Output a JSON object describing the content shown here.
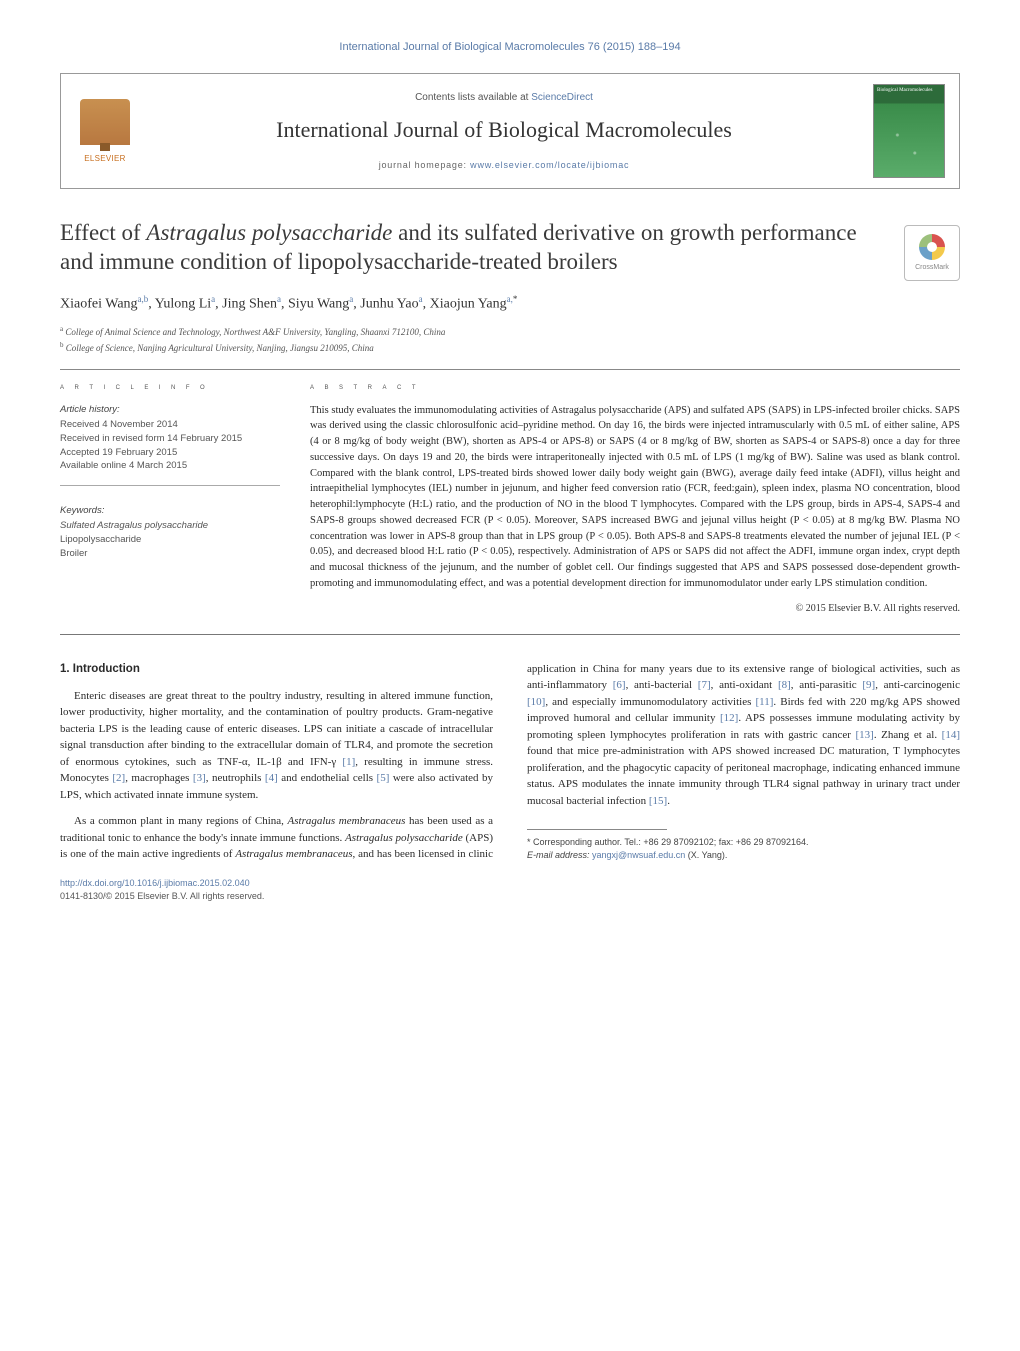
{
  "top_citation": "International Journal of Biological Macromolecules 76 (2015) 188–194",
  "header": {
    "elsevier_label": "ELSEVIER",
    "contents_prefix": "Contents lists available at ",
    "contents_link": "ScienceDirect",
    "journal_title": "International Journal of Biological Macromolecules",
    "homepage_prefix": "journal homepage: ",
    "homepage_url": "www.elsevier.com/locate/ijbiomac",
    "cover_label": "Biological Macromolecules"
  },
  "crossmark_label": "CrossMark",
  "title_parts": {
    "p1": "Effect of ",
    "em1": "Astragalus polysaccharide",
    "p2": " and its sulfated derivative on growth performance and immune condition of lipopolysaccharide-treated broilers"
  },
  "authors_html": "Xiaofei Wang|a,b|, Yulong Li|a|, Jing Shen|a|, Siyu Wang|a|, Junhu Yao|a|, Xiaojun Yang|a,*|",
  "authors": [
    {
      "name": "Xiaofei Wang",
      "sup": "a,b"
    },
    {
      "name": "Yulong Li",
      "sup": "a"
    },
    {
      "name": "Jing Shen",
      "sup": "a"
    },
    {
      "name": "Siyu Wang",
      "sup": "a"
    },
    {
      "name": "Junhu Yao",
      "sup": "a"
    },
    {
      "name": "Xiaojun Yang",
      "sup": "a,",
      "star": "*"
    }
  ],
  "affiliations": [
    {
      "sup": "a",
      "text": "College of Animal Science and Technology, Northwest A&F University, Yangling, Shaanxi 712100, China"
    },
    {
      "sup": "b",
      "text": "College of Science, Nanjing Agricultural University, Nanjing, Jiangsu 210095, China"
    }
  ],
  "info_head": "A R T I C L E   I N F O",
  "abs_head": "A B S T R A C T",
  "history_label": "Article history:",
  "history": [
    "Received 4 November 2014",
    "Received in revised form 14 February 2015",
    "Accepted 19 February 2015",
    "Available online 4 March 2015"
  ],
  "keywords_label": "Keywords:",
  "keywords": [
    "Sulfated Astragalus polysaccharide",
    "Lipopolysaccharide",
    "Broiler"
  ],
  "abstract": "This study evaluates the immunomodulating activities of Astragalus polysaccharide (APS) and sulfated APS (SAPS) in LPS-infected broiler chicks. SAPS was derived using the classic chlorosulfonic acid–pyridine method. On day 16, the birds were injected intramuscularly with 0.5 mL of either saline, APS (4 or 8 mg/kg of body weight (BW), shorten as APS-4 or APS-8) or SAPS (4 or 8 mg/kg of BW, shorten as SAPS-4 or SAPS-8) once a day for three successive days. On days 19 and 20, the birds were intraperitoneally injected with 0.5 mL of LPS (1 mg/kg of BW). Saline was used as blank control. Compared with the blank control, LPS-treated birds showed lower daily body weight gain (BWG), average daily feed intake (ADFI), villus height and intraepithelial lymphocytes (IEL) number in jejunum, and higher feed conversion ratio (FCR, feed:gain), spleen index, plasma NO concentration, blood heterophil:lymphocyte (H:L) ratio, and the production of NO in the blood T lymphocytes. Compared with the LPS group, birds in APS-4, SAPS-4 and SAPS-8 groups showed decreased FCR (P < 0.05). Moreover, SAPS increased BWG and jejunal villus height (P < 0.05) at 8 mg/kg BW. Plasma NO concentration was lower in APS-8 group than that in LPS group (P < 0.05). Both APS-8 and SAPS-8 treatments elevated the number of jejunal IEL (P < 0.05), and decreased blood H:L ratio (P < 0.05), respectively. Administration of APS or SAPS did not affect the ADFI, immune organ index, crypt depth and mucosal thickness of the jejunum, and the number of goblet cell. Our findings suggested that APS and SAPS possessed dose-dependent growth-promoting and immunomodulating effect, and was a potential development direction for immunomodulator under early LPS stimulation condition.",
  "copyright": "© 2015 Elsevier B.V. All rights reserved.",
  "section1_head": "1. Introduction",
  "para1": "Enteric diseases are great threat to the poultry industry, resulting in altered immune function, lower productivity, higher mortality, and the contamination of poultry products. Gram-negative bacteria LPS is the leading cause of enteric diseases. LPS can initiate a cascade of intracellular signal transduction after binding to the extracellular domain of TLR4, and promote the secretion of enormous cytokines, such as TNF-α, IL-1β and IFN-γ [1], resulting in immune stress. Monocytes [2], macrophages [3], neutrophils [4] and endothelial cells [5] were also activated by LPS, which activated innate immune system.",
  "para2": "As a common plant in many regions of China, Astragalus membranaceus has been used as a traditional tonic to enhance the body's innate immune functions. Astragalus polysaccharide (APS) is one of the main active ingredients of Astragalus membranaceus, and has been licensed in clinic application in China for many years due to its extensive range of biological activities, such as anti-inflammatory [6], anti-bacterial [7], anti-oxidant [8], anti-parasitic [9], anti-carcinogenic [10], and especially immunomodulatory activities [11]. Birds fed with 220 mg/kg APS showed improved humoral and cellular immunity [12]. APS possesses immune modulating activity by promoting spleen lymphocytes proliferation in rats with gastric cancer [13]. Zhang et al. [14] found that mice pre-administration with APS showed increased DC maturation, T lymphocytes proliferation, and the phagocytic capacity of peritoneal macrophage, indicating enhanced immune status. APS modulates the innate immunity through TLR4 signal pathway in urinary tract under mucosal bacterial infection [15].",
  "footnote_corr_label": "* Corresponding author. Tel.: +86 29 87092102; fax: +86 29 87092164.",
  "footnote_email_label": "E-mail address: ",
  "footnote_email": "yangxj@nwsuaf.edu.cn",
  "footnote_email_tail": " (X. Yang).",
  "doi": "http://dx.doi.org/10.1016/j.ijbiomac.2015.02.040",
  "issn_line": "0141-8130/© 2015 Elsevier B.V. All rights reserved.",
  "colors": {
    "link": "#5a7ba8",
    "text": "#2a2a2a",
    "rule": "#888888"
  }
}
